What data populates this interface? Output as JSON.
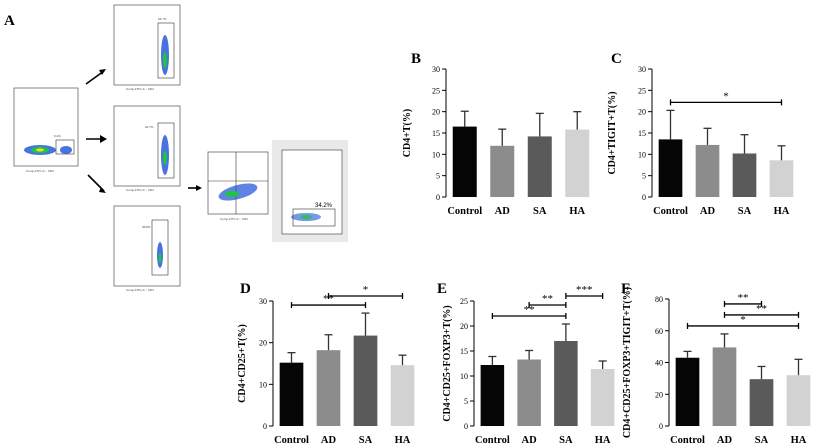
{
  "figure": {
    "label_A": "A",
    "flow": {
      "gate_pct_main": "6.4%",
      "gate_pct_top": "94.7%",
      "gate_pct_mid": "20.7%",
      "gate_pct_bottom": "35.8%",
      "gate_pct_final": "34.2%",
      "x_axis_caption": "Comp-FITC-A :: CD4",
      "y_axis_caption": "SSC-A"
    }
  },
  "colors": {
    "control": "#050505",
    "ad": "#8c8c8c",
    "sa": "#5a5a5a",
    "ha": "#d2d2d2"
  },
  "chart_data": [
    {
      "panel": "B",
      "type": "bar",
      "categories": [
        "Control",
        "AD",
        "SA",
        "HA"
      ],
      "values": [
        16.5,
        12.0,
        14.2,
        15.8
      ],
      "errors": [
        3.6,
        3.9,
        5.4,
        4.2
      ],
      "ylabel": "CD4+T(%)",
      "ylim": [
        0,
        30
      ],
      "yticks": [
        0,
        5,
        10,
        15,
        20,
        25,
        30
      ],
      "significance": []
    },
    {
      "panel": "C",
      "type": "bar",
      "categories": [
        "Control",
        "AD",
        "SA",
        "HA"
      ],
      "values": [
        13.5,
        12.2,
        10.2,
        8.6
      ],
      "errors": [
        6.8,
        3.9,
        4.4,
        3.4
      ],
      "ylabel": "CD4+TIGIT+T(%)",
      "ylim": [
        0,
        30
      ],
      "yticks": [
        0,
        5,
        10,
        15,
        20,
        25,
        30
      ],
      "significance": [
        {
          "from": 0,
          "to": 3,
          "label": "*"
        }
      ]
    },
    {
      "panel": "D",
      "type": "bar",
      "categories": [
        "Control",
        "AD",
        "SA",
        "HA"
      ],
      "values": [
        15.2,
        18.2,
        21.7,
        14.6
      ],
      "errors": [
        2.4,
        3.7,
        5.4,
        2.4
      ],
      "ylabel": "CD4+CD25+T(%)",
      "ylim": [
        0,
        30
      ],
      "yticks": [
        0,
        10,
        20,
        30
      ],
      "significance": [
        {
          "from": 0,
          "to": 2,
          "label": "**"
        },
        {
          "from": 1,
          "to": 3,
          "label": "*"
        }
      ]
    },
    {
      "panel": "E",
      "type": "bar",
      "categories": [
        "Control",
        "AD",
        "SA",
        "HA"
      ],
      "values": [
        12.2,
        13.3,
        17.0,
        11.4
      ],
      "errors": [
        1.7,
        1.8,
        3.4,
        1.6
      ],
      "ylabel": "CD4+CD25+FOXP3+T(%)",
      "ylim": [
        0,
        25
      ],
      "yticks": [
        0,
        5,
        10,
        15,
        20,
        25
      ],
      "significance": [
        {
          "from": 0,
          "to": 2,
          "label": "**"
        },
        {
          "from": 1,
          "to": 2,
          "label": "**"
        },
        {
          "from": 2,
          "to": 3,
          "label": "***"
        }
      ]
    },
    {
      "panel": "F",
      "type": "bar",
      "categories": [
        "Control",
        "AD",
        "SA",
        "HA"
      ],
      "values": [
        43,
        49.5,
        29.5,
        32
      ],
      "errors": [
        4,
        8.5,
        8,
        10
      ],
      "ylabel": "CD4+CD25+FOXP3+TIGIT+T(%)",
      "ylim": [
        0,
        80
      ],
      "yticks": [
        0,
        20,
        40,
        60,
        80
      ],
      "significance": [
        {
          "from": 0,
          "to": 3,
          "label": "*"
        },
        {
          "from": 1,
          "to": 3,
          "label": "**"
        },
        {
          "from": 1,
          "to": 2,
          "label": "**"
        }
      ]
    }
  ]
}
